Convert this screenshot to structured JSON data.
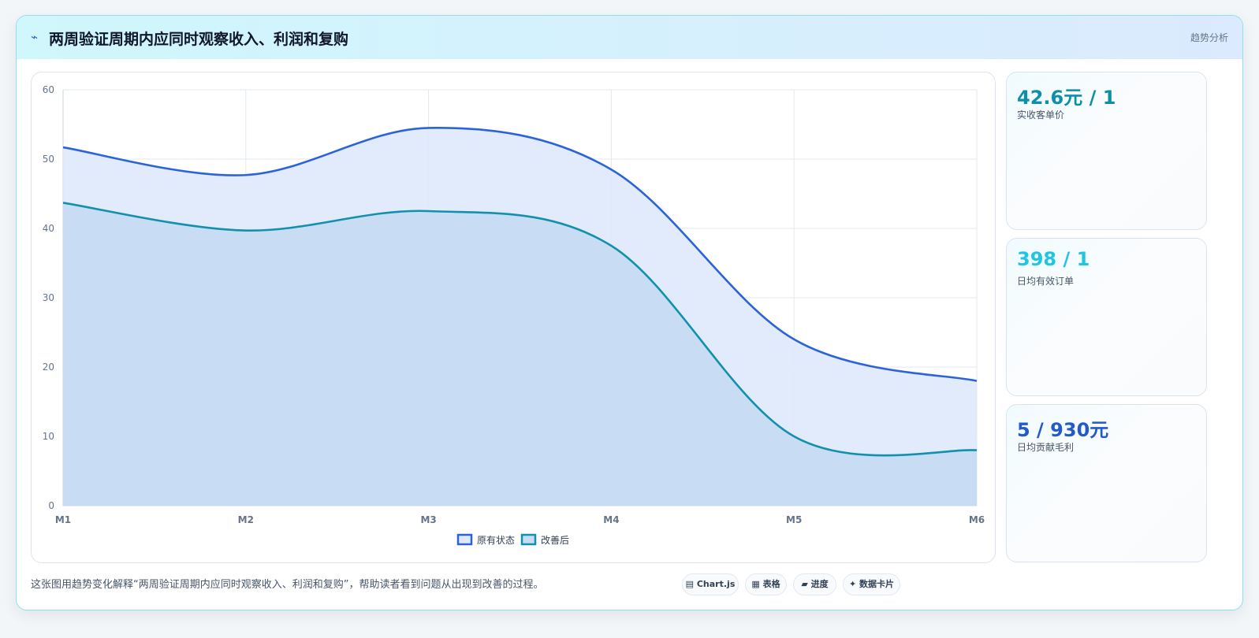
{
  "header": {
    "icon": "lightning-icon",
    "title": "两周验证周期内应同时观察收入、利润和复购",
    "tag": "趋势分析"
  },
  "stats": [
    {
      "value": "42.6元 / 1",
      "label": "实收客单价",
      "color": "#0e8fa8"
    },
    {
      "value": "398 / 1",
      "label": "日均有效订单",
      "color": "#22c5e0"
    },
    {
      "value": "5 / 930元",
      "label": "日均贡献毛利",
      "color": "#2459c9"
    }
  ],
  "caption": "这张图用趋势变化解释“两周验证周期内应同时观察收入、利润和复购”，帮助读者看到问题从出现到改善的过程。",
  "pills": [
    {
      "icon": "chart-icon",
      "label": "Chart.js"
    },
    {
      "icon": "table-icon",
      "label": "表格"
    },
    {
      "icon": "progress-icon",
      "label": "进度"
    },
    {
      "icon": "sparkle-icon",
      "label": "数据卡片"
    }
  ],
  "chart_data": {
    "type": "area",
    "categories": [
      "M1",
      "M2",
      "M3",
      "M4",
      "M5",
      "M6"
    ],
    "ylim": [
      0,
      60
    ],
    "yticks": [
      0,
      10,
      20,
      30,
      40,
      50,
      60
    ],
    "grid": true,
    "legend_position": "bottom",
    "series": [
      {
        "name": "原有状态",
        "values": [
          51.7,
          47.7,
          54.5,
          48.5,
          24.0,
          18.0
        ],
        "color": "#2b63d9",
        "fill": "#dfe9fb"
      },
      {
        "name": "改善后",
        "values": [
          43.7,
          39.7,
          42.5,
          37.5,
          10.0,
          8.0
        ],
        "color": "#1290ad",
        "fill": "#c5dcf2"
      }
    ]
  }
}
